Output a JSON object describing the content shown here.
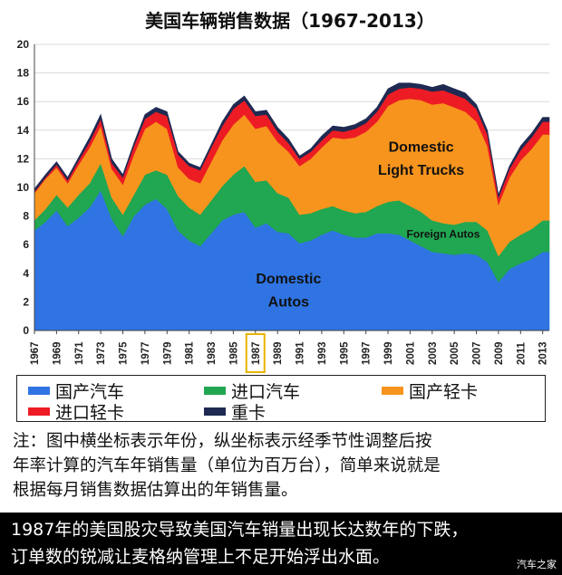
{
  "chart_data": {
    "type": "area",
    "stacked": true,
    "title": "美国车辆销售数据（1967-2013）",
    "xlabel": "",
    "ylabel": "",
    "xlim": [
      1967,
      2013.6
    ],
    "ylim": [
      0,
      20
    ],
    "y_ticks": [
      "0",
      "2",
      "4",
      "6",
      "8",
      "10",
      "12",
      "14",
      "16",
      "18",
      "20"
    ],
    "x_ticks": [
      "1967",
      "1969",
      "1971",
      "1973",
      "1975",
      "1977",
      "1979",
      "1981",
      "1983",
      "1985",
      "1987",
      "1989",
      "1991",
      "1993",
      "1995",
      "1997",
      "1999",
      "2001",
      "2003",
      "2005",
      "2007",
      "2009",
      "2011",
      "2013"
    ],
    "highlight_year": "1987",
    "x": [
      1967,
      1968,
      1969,
      1970,
      1971,
      1972,
      1973,
      1974,
      1975,
      1976,
      1977,
      1978,
      1979,
      1980,
      1981,
      1982,
      1983,
      1984,
      1985,
      1986,
      1987,
      1988,
      1989,
      1990,
      1991,
      1992,
      1993,
      1994,
      1995,
      1996,
      1997,
      1998,
      1999,
      2000,
      2001,
      2002,
      2003,
      2004,
      2005,
      2006,
      2007,
      2008,
      2009,
      2010,
      2011,
      2012,
      2013
    ],
    "series": [
      {
        "name": "国产汽车",
        "color": "#2f74e2",
        "values": [
          7.0,
          7.6,
          8.4,
          7.3,
          7.9,
          8.6,
          9.8,
          7.8,
          6.6,
          8.0,
          8.8,
          9.2,
          8.5,
          7.0,
          6.3,
          5.9,
          6.8,
          7.7,
          8.1,
          8.3,
          7.2,
          7.5,
          6.9,
          6.8,
          6.1,
          6.3,
          6.7,
          7.0,
          6.7,
          6.5,
          6.5,
          6.8,
          6.8,
          6.7,
          6.3,
          5.9,
          5.5,
          5.4,
          5.3,
          5.4,
          5.3,
          4.8,
          3.4,
          4.3,
          4.7,
          5.0,
          5.5
        ]
      },
      {
        "name": "进口汽车",
        "color": "#21a651",
        "values": [
          0.7,
          0.9,
          1.1,
          1.3,
          1.6,
          1.7,
          1.9,
          1.5,
          1.5,
          1.5,
          2.1,
          2.0,
          2.4,
          2.4,
          2.3,
          2.2,
          2.3,
          2.4,
          2.8,
          3.2,
          3.2,
          3.0,
          2.7,
          2.5,
          2.0,
          1.9,
          1.8,
          1.7,
          1.7,
          1.7,
          1.8,
          1.9,
          2.2,
          2.4,
          2.4,
          2.4,
          2.2,
          2.1,
          2.1,
          2.2,
          2.3,
          2.2,
          1.8,
          1.9,
          2.0,
          2.1,
          2.2
        ]
      },
      {
        "name": "国产轻卡",
        "color": "#f7941d",
        "values": [
          1.9,
          2.1,
          1.9,
          1.7,
          2.1,
          2.5,
          2.6,
          2.0,
          2.1,
          2.8,
          3.2,
          3.4,
          3.2,
          2.0,
          2.0,
          2.2,
          2.7,
          3.2,
          3.5,
          3.6,
          3.7,
          3.8,
          3.6,
          3.2,
          3.4,
          3.8,
          4.3,
          4.8,
          5.0,
          5.3,
          5.6,
          5.9,
          6.7,
          7.0,
          7.5,
          7.8,
          8.1,
          8.4,
          8.2,
          7.7,
          7.0,
          5.9,
          3.6,
          4.5,
          5.2,
          5.6,
          6.0
        ]
      },
      {
        "name": "进口轻卡",
        "color": "#ed1c24",
        "values": [
          0.1,
          0.1,
          0.2,
          0.2,
          0.3,
          0.4,
          0.5,
          0.4,
          0.5,
          0.6,
          0.7,
          0.7,
          0.9,
          0.9,
          0.9,
          0.9,
          1.0,
          1.0,
          1.1,
          1.0,
          0.9,
          0.8,
          0.7,
          0.6,
          0.5,
          0.5,
          0.5,
          0.5,
          0.5,
          0.6,
          0.6,
          0.7,
          0.8,
          0.8,
          0.8,
          0.8,
          0.9,
          0.9,
          0.9,
          0.9,
          0.9,
          0.8,
          0.5,
          0.6,
          0.7,
          0.8,
          0.9
        ]
      },
      {
        "name": "重卡",
        "color": "#1f2a52",
        "values": [
          0.2,
          0.2,
          0.2,
          0.2,
          0.2,
          0.3,
          0.3,
          0.3,
          0.2,
          0.2,
          0.3,
          0.3,
          0.3,
          0.2,
          0.2,
          0.2,
          0.2,
          0.3,
          0.3,
          0.3,
          0.3,
          0.3,
          0.3,
          0.3,
          0.2,
          0.2,
          0.3,
          0.3,
          0.3,
          0.3,
          0.3,
          0.3,
          0.4,
          0.4,
          0.3,
          0.3,
          0.3,
          0.4,
          0.4,
          0.4,
          0.3,
          0.3,
          0.2,
          0.2,
          0.3,
          0.3,
          0.3
        ]
      }
    ],
    "annotations": [
      {
        "text": "Domestic\nLight Trucks",
        "x": 2002,
        "y": 12.5,
        "color": "#111111"
      },
      {
        "text": "Foreign Autos",
        "x": 2004,
        "y": 6.5,
        "color": "#111111"
      },
      {
        "text": "Domestic\nAutos",
        "x": 1990,
        "y": 3.3,
        "color": "#111111"
      }
    ],
    "legend": [
      "国产汽车",
      "进口汽车",
      "国产轻卡",
      "进口轻卡",
      "重卡"
    ],
    "legend_position": "bottom"
  },
  "note": {
    "line1": "注：图中横坐标表示年份，纵坐标表示经季节性调整后按",
    "line2": "年率计算的汽车年销售量（单位为百万台），简单来说就是",
    "line3": "根据每月销售数据估算出的年销售量。"
  },
  "caption": {
    "line1": "1987年的美国股灾导致美国汽车销量出现长达数年的下跌，",
    "line2": "订单数的锐减让麦格纳管理上不足开始浮出水面。"
  },
  "watermark": "汽车之家"
}
